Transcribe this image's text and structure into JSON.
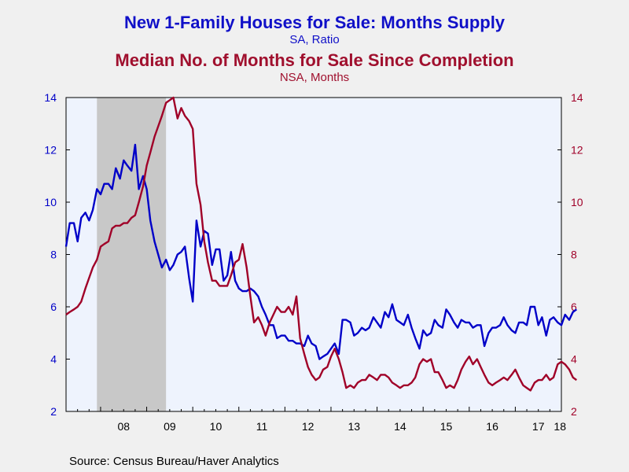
{
  "titles": {
    "line1": "New 1-Family Houses for Sale: Months Supply",
    "line1_sub": "SA, Ratio",
    "line2": "Median No. of Months for Sale Since Completion",
    "line2_sub": "NSA, Months"
  },
  "source": "Source:  Census Bureau/Haver Analytics",
  "colors": {
    "series1": "#0000c8",
    "series2": "#a00028",
    "plot_bg": "#eef3fd",
    "recession": "#c8c8c8",
    "page_bg": "#f0f0f0"
  },
  "chart_data": {
    "type": "line",
    "x_unit": "year",
    "xlim": [
      2007.25,
      2018.0
    ],
    "ylim_left": [
      2,
      14
    ],
    "ylim_right": [
      2,
      14
    ],
    "yticks_left": [
      "2",
      "4",
      "6",
      "8",
      "10",
      "12",
      "14"
    ],
    "yticks_right": [
      "2",
      "4",
      "6",
      "8",
      "10",
      "12",
      "14"
    ],
    "xtick_labels": [
      "08",
      "09",
      "10",
      "11",
      "12",
      "13",
      "14",
      "15",
      "16",
      "17",
      "18"
    ],
    "grid": false,
    "recession_shading": [
      [
        2007.92,
        2009.42
      ]
    ],
    "series": [
      {
        "name": "New 1-Family Houses for Sale: Months Supply",
        "axis": "left",
        "points": [
          [
            2007.25,
            8.3
          ],
          [
            2007.33,
            9.2
          ],
          [
            2007.42,
            9.2
          ],
          [
            2007.5,
            8.5
          ],
          [
            2007.58,
            9.4
          ],
          [
            2007.67,
            9.6
          ],
          [
            2007.75,
            9.3
          ],
          [
            2007.83,
            9.7
          ],
          [
            2007.92,
            10.5
          ],
          [
            2008.0,
            10.3
          ],
          [
            2008.08,
            10.7
          ],
          [
            2008.17,
            10.7
          ],
          [
            2008.25,
            10.5
          ],
          [
            2008.33,
            11.3
          ],
          [
            2008.42,
            10.9
          ],
          [
            2008.5,
            11.6
          ],
          [
            2008.58,
            11.4
          ],
          [
            2008.67,
            11.2
          ],
          [
            2008.75,
            12.2
          ],
          [
            2008.83,
            10.5
          ],
          [
            2008.92,
            11.0
          ],
          [
            2009.0,
            10.5
          ],
          [
            2009.08,
            9.3
          ],
          [
            2009.17,
            8.5
          ],
          [
            2009.25,
            8.0
          ],
          [
            2009.33,
            7.5
          ],
          [
            2009.42,
            7.8
          ],
          [
            2009.5,
            7.4
          ],
          [
            2009.58,
            7.6
          ],
          [
            2009.67,
            8.0
          ],
          [
            2009.75,
            8.1
          ],
          [
            2009.83,
            8.3
          ],
          [
            2009.92,
            7.1
          ],
          [
            2010.0,
            6.2
          ],
          [
            2010.08,
            9.3
          ],
          [
            2010.17,
            8.3
          ],
          [
            2010.25,
            8.9
          ],
          [
            2010.33,
            8.8
          ],
          [
            2010.42,
            7.6
          ],
          [
            2010.5,
            8.2
          ],
          [
            2010.58,
            8.2
          ],
          [
            2010.67,
            7.0
          ],
          [
            2010.75,
            7.2
          ],
          [
            2010.83,
            8.1
          ],
          [
            2010.92,
            7.0
          ],
          [
            2011.0,
            6.7
          ],
          [
            2011.08,
            6.6
          ],
          [
            2011.17,
            6.6
          ],
          [
            2011.25,
            6.7
          ],
          [
            2011.33,
            6.6
          ],
          [
            2011.42,
            6.4
          ],
          [
            2011.5,
            6.0
          ],
          [
            2011.58,
            5.7
          ],
          [
            2011.67,
            5.3
          ],
          [
            2011.75,
            5.3
          ],
          [
            2011.83,
            4.8
          ],
          [
            2011.92,
            4.9
          ],
          [
            2012.0,
            4.9
          ],
          [
            2012.08,
            4.7
          ],
          [
            2012.17,
            4.7
          ],
          [
            2012.25,
            4.6
          ],
          [
            2012.33,
            4.6
          ],
          [
            2012.42,
            4.5
          ],
          [
            2012.5,
            4.9
          ],
          [
            2012.58,
            4.6
          ],
          [
            2012.67,
            4.5
          ],
          [
            2012.75,
            4.0
          ],
          [
            2012.83,
            4.1
          ],
          [
            2012.92,
            4.2
          ],
          [
            2013.0,
            4.4
          ],
          [
            2013.08,
            4.6
          ],
          [
            2013.17,
            4.2
          ],
          [
            2013.25,
            5.5
          ],
          [
            2013.33,
            5.5
          ],
          [
            2013.42,
            5.4
          ],
          [
            2013.5,
            4.9
          ],
          [
            2013.58,
            5.0
          ],
          [
            2013.67,
            5.2
          ],
          [
            2013.75,
            5.1
          ],
          [
            2013.83,
            5.2
          ],
          [
            2013.92,
            5.6
          ],
          [
            2014.0,
            5.4
          ],
          [
            2014.08,
            5.2
          ],
          [
            2014.17,
            5.8
          ],
          [
            2014.25,
            5.6
          ],
          [
            2014.33,
            6.1
          ],
          [
            2014.42,
            5.5
          ],
          [
            2014.5,
            5.4
          ],
          [
            2014.58,
            5.3
          ],
          [
            2014.67,
            5.7
          ],
          [
            2014.75,
            5.2
          ],
          [
            2014.83,
            4.8
          ],
          [
            2014.92,
            4.4
          ],
          [
            2015.0,
            5.1
          ],
          [
            2015.08,
            4.9
          ],
          [
            2015.17,
            5.0
          ],
          [
            2015.25,
            5.5
          ],
          [
            2015.33,
            5.3
          ],
          [
            2015.42,
            5.2
          ],
          [
            2015.5,
            5.9
          ],
          [
            2015.58,
            5.7
          ],
          [
            2015.67,
            5.4
          ],
          [
            2015.75,
            5.2
          ],
          [
            2015.83,
            5.5
          ],
          [
            2015.92,
            5.4
          ],
          [
            2016.0,
            5.4
          ],
          [
            2016.08,
            5.2
          ],
          [
            2016.17,
            5.3
          ],
          [
            2016.25,
            5.3
          ],
          [
            2016.33,
            4.5
          ],
          [
            2016.42,
            5.0
          ],
          [
            2016.5,
            5.2
          ],
          [
            2016.58,
            5.2
          ],
          [
            2016.67,
            5.3
          ],
          [
            2016.75,
            5.6
          ],
          [
            2016.83,
            5.3
          ],
          [
            2016.92,
            5.1
          ],
          [
            2017.0,
            5.0
          ],
          [
            2017.08,
            5.4
          ],
          [
            2017.17,
            5.4
          ],
          [
            2017.25,
            5.3
          ],
          [
            2017.33,
            6.0
          ],
          [
            2017.42,
            6.0
          ],
          [
            2017.5,
            5.3
          ],
          [
            2017.58,
            5.6
          ],
          [
            2017.67,
            4.9
          ],
          [
            2017.75,
            5.5
          ],
          [
            2017.83,
            5.6
          ],
          [
            2017.92,
            5.4
          ],
          [
            2018.0,
            5.3
          ],
          [
            2018.08,
            5.7
          ],
          [
            2018.17,
            5.5
          ],
          [
            2018.25,
            5.8
          ],
          [
            2018.33,
            5.9
          ]
        ]
      },
      {
        "name": "Median No. of Months for Sale Since Completion",
        "axis": "right",
        "points": [
          [
            2007.25,
            5.7
          ],
          [
            2007.33,
            5.8
          ],
          [
            2007.42,
            5.9
          ],
          [
            2007.5,
            6.0
          ],
          [
            2007.58,
            6.2
          ],
          [
            2007.67,
            6.7
          ],
          [
            2007.75,
            7.1
          ],
          [
            2007.83,
            7.5
          ],
          [
            2007.92,
            7.8
          ],
          [
            2008.0,
            8.3
          ],
          [
            2008.08,
            8.4
          ],
          [
            2008.17,
            8.5
          ],
          [
            2008.25,
            9.0
          ],
          [
            2008.33,
            9.1
          ],
          [
            2008.42,
            9.1
          ],
          [
            2008.5,
            9.2
          ],
          [
            2008.58,
            9.2
          ],
          [
            2008.67,
            9.4
          ],
          [
            2008.75,
            9.5
          ],
          [
            2008.83,
            10.0
          ],
          [
            2008.92,
            10.6
          ],
          [
            2009.0,
            11.4
          ],
          [
            2009.08,
            11.9
          ],
          [
            2009.17,
            12.5
          ],
          [
            2009.25,
            12.9
          ],
          [
            2009.33,
            13.3
          ],
          [
            2009.42,
            13.8
          ],
          [
            2009.5,
            13.9
          ],
          [
            2009.58,
            14.0
          ],
          [
            2009.67,
            13.2
          ],
          [
            2009.75,
            13.6
          ],
          [
            2009.83,
            13.3
          ],
          [
            2009.92,
            13.1
          ],
          [
            2010.0,
            12.8
          ],
          [
            2010.08,
            10.7
          ],
          [
            2010.17,
            9.9
          ],
          [
            2010.25,
            8.5
          ],
          [
            2010.33,
            7.7
          ],
          [
            2010.42,
            7.0
          ],
          [
            2010.5,
            7.0
          ],
          [
            2010.58,
            6.8
          ],
          [
            2010.67,
            6.8
          ],
          [
            2010.75,
            6.8
          ],
          [
            2010.83,
            7.2
          ],
          [
            2010.92,
            7.7
          ],
          [
            2011.0,
            7.8
          ],
          [
            2011.08,
            8.4
          ],
          [
            2011.17,
            7.5
          ],
          [
            2011.25,
            6.4
          ],
          [
            2011.33,
            5.4
          ],
          [
            2011.42,
            5.6
          ],
          [
            2011.5,
            5.3
          ],
          [
            2011.58,
            4.9
          ],
          [
            2011.67,
            5.4
          ],
          [
            2011.75,
            5.7
          ],
          [
            2011.83,
            6.0
          ],
          [
            2011.92,
            5.8
          ],
          [
            2012.0,
            5.8
          ],
          [
            2012.08,
            6.0
          ],
          [
            2012.17,
            5.7
          ],
          [
            2012.25,
            6.4
          ],
          [
            2012.33,
            4.8
          ],
          [
            2012.42,
            4.2
          ],
          [
            2012.5,
            3.7
          ],
          [
            2012.58,
            3.4
          ],
          [
            2012.67,
            3.2
          ],
          [
            2012.75,
            3.3
          ],
          [
            2012.83,
            3.6
          ],
          [
            2012.92,
            3.7
          ],
          [
            2013.0,
            4.1
          ],
          [
            2013.08,
            4.4
          ],
          [
            2013.17,
            4.0
          ],
          [
            2013.25,
            3.5
          ],
          [
            2013.33,
            2.9
          ],
          [
            2013.42,
            3.0
          ],
          [
            2013.5,
            2.9
          ],
          [
            2013.58,
            3.1
          ],
          [
            2013.67,
            3.2
          ],
          [
            2013.75,
            3.2
          ],
          [
            2013.83,
            3.4
          ],
          [
            2013.92,
            3.3
          ],
          [
            2014.0,
            3.2
          ],
          [
            2014.08,
            3.4
          ],
          [
            2014.17,
            3.4
          ],
          [
            2014.25,
            3.3
          ],
          [
            2014.33,
            3.1
          ],
          [
            2014.42,
            3.0
          ],
          [
            2014.5,
            2.9
          ],
          [
            2014.58,
            3.0
          ],
          [
            2014.67,
            3.0
          ],
          [
            2014.75,
            3.1
          ],
          [
            2014.83,
            3.3
          ],
          [
            2014.92,
            3.8
          ],
          [
            2015.0,
            4.0
          ],
          [
            2015.08,
            3.9
          ],
          [
            2015.17,
            4.0
          ],
          [
            2015.25,
            3.5
          ],
          [
            2015.33,
            3.5
          ],
          [
            2015.42,
            3.2
          ],
          [
            2015.5,
            2.9
          ],
          [
            2015.58,
            3.0
          ],
          [
            2015.67,
            2.9
          ],
          [
            2015.75,
            3.2
          ],
          [
            2015.83,
            3.6
          ],
          [
            2015.92,
            3.9
          ],
          [
            2016.0,
            4.1
          ],
          [
            2016.08,
            3.8
          ],
          [
            2016.17,
            4.0
          ],
          [
            2016.25,
            3.7
          ],
          [
            2016.33,
            3.4
          ],
          [
            2016.42,
            3.1
          ],
          [
            2016.5,
            3.0
          ],
          [
            2016.58,
            3.1
          ],
          [
            2016.67,
            3.2
          ],
          [
            2016.75,
            3.3
          ],
          [
            2016.83,
            3.2
          ],
          [
            2016.92,
            3.4
          ],
          [
            2017.0,
            3.6
          ],
          [
            2017.08,
            3.3
          ],
          [
            2017.17,
            3.0
          ],
          [
            2017.25,
            2.9
          ],
          [
            2017.33,
            2.8
          ],
          [
            2017.42,
            3.1
          ],
          [
            2017.5,
            3.2
          ],
          [
            2017.58,
            3.2
          ],
          [
            2017.67,
            3.4
          ],
          [
            2017.75,
            3.2
          ],
          [
            2017.83,
            3.3
          ],
          [
            2017.92,
            3.8
          ],
          [
            2018.0,
            3.9
          ],
          [
            2018.08,
            3.8
          ],
          [
            2018.17,
            3.6
          ],
          [
            2018.25,
            3.3
          ],
          [
            2018.33,
            3.2
          ]
        ]
      }
    ]
  }
}
